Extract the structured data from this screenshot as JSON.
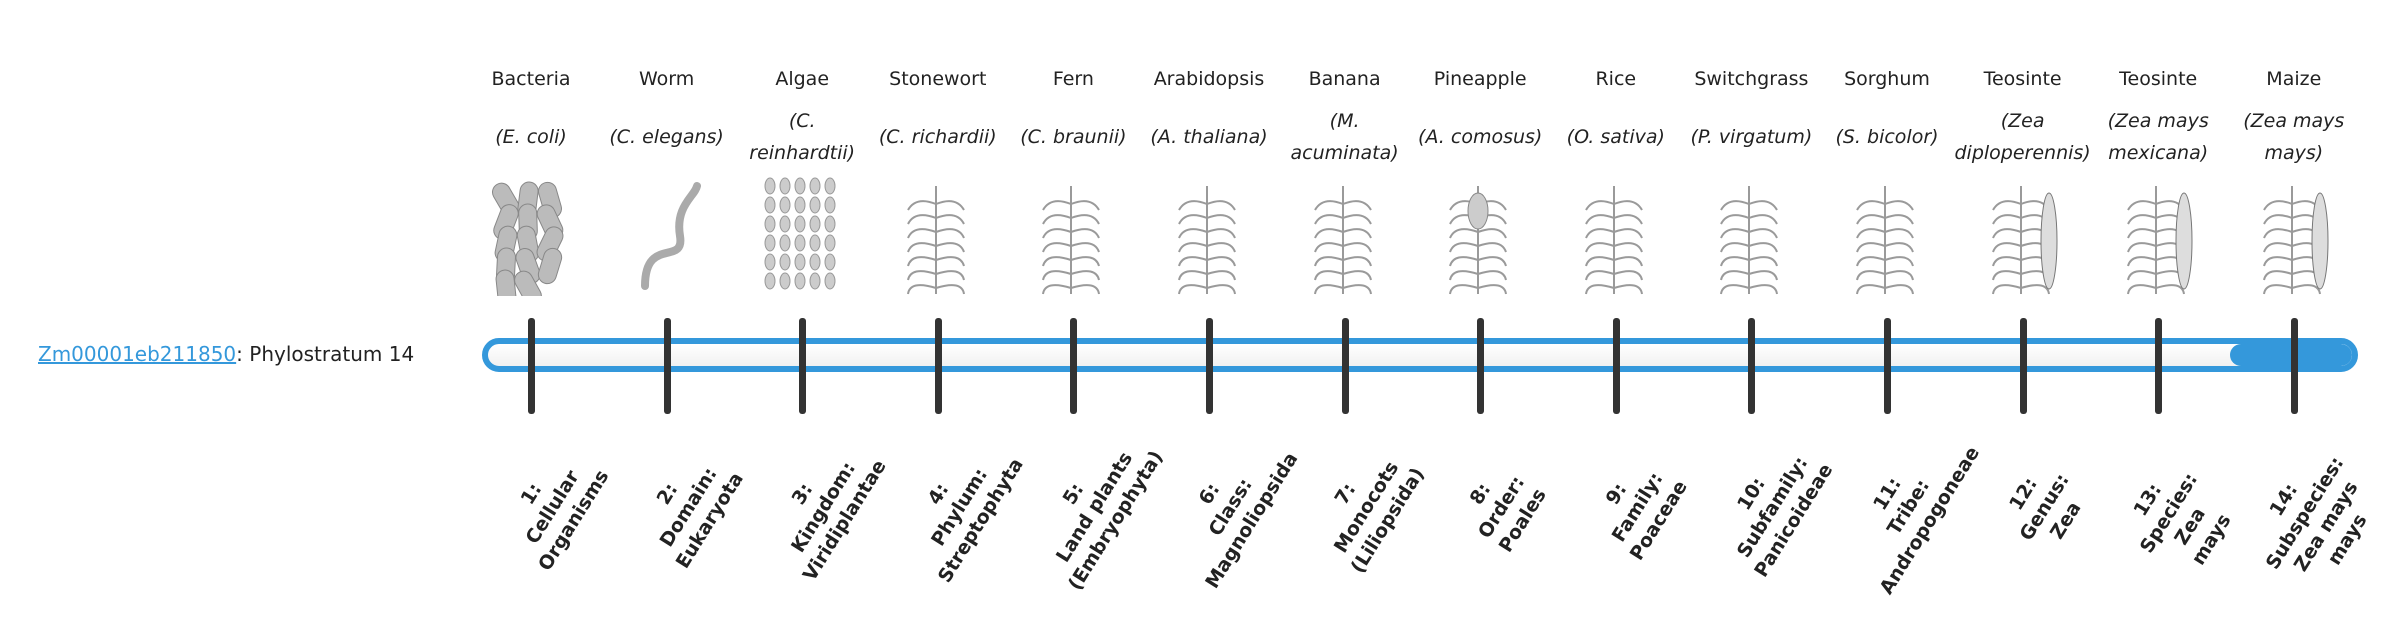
{
  "gene": {
    "id": "Zm00001eb211850",
    "separator": ":",
    "text": " Phylostratum 14",
    "phylostratum": 14,
    "total_strata": 14
  },
  "accent_color": "#3498db",
  "organisms": [
    {
      "common": "Bacteria",
      "latin": "(E. coli)",
      "icon": "bacteria-icon"
    },
    {
      "common": "Worm",
      "latin": "(C. elegans)",
      "icon": "worm-icon"
    },
    {
      "common": "Algae",
      "latin": "(C. reinhardtii)",
      "icon": "algae-icon"
    },
    {
      "common": "Stonewort",
      "latin": "(C. richardii)",
      "icon": "stonewort-icon"
    },
    {
      "common": "Fern",
      "latin": "(C. braunii)",
      "icon": "fern-icon"
    },
    {
      "common": "Arabidopsis",
      "latin": "(A. thaliana)",
      "icon": "arabidopsis-icon"
    },
    {
      "common": "Banana",
      "latin": "(M. acuminata)",
      "icon": "banana-icon"
    },
    {
      "common": "Pineapple",
      "latin": "(A. comosus)",
      "icon": "pineapple-icon"
    },
    {
      "common": "Rice",
      "latin": "(O. sativa)",
      "icon": "rice-icon"
    },
    {
      "common": "Switchgrass",
      "latin": "(P. virgatum)",
      "icon": "switchgrass-icon"
    },
    {
      "common": "Sorghum",
      "latin": "(S. bicolor)",
      "icon": "sorghum-icon"
    },
    {
      "common": "Teosinte",
      "latin": "(Zea diploperennis)",
      "icon": "teosinte-icon"
    },
    {
      "common": "Teosinte",
      "latin": "(Zea mays mexicana)",
      "icon": "teosinte-mexicana-icon"
    },
    {
      "common": "Maize",
      "latin": "(Zea mays mays)",
      "icon": "maize-icon"
    }
  ],
  "strata": [
    "1:\nCellular\nOrganisms",
    "2:\nDomain:\nEukaryota",
    "3:\nKingdom:\nViridiplantae",
    "4:\nPhylum:\nStreptophyta",
    "5:\nLand plants\n(Embryophyta)",
    "6:\nClass:\nMagnoliopsida",
    "7:\nMonocots\n(Liliopsida)",
    "8:\nOrder:\nPoales",
    "9:\nFamily:\nPoaceae",
    "10:\nSubfamily:\nPanicoideae",
    "11:\nTribe:\nAndropogoneae",
    "12:\nGenus:\nZea",
    "13:\nSpecies:\nZea\nmays",
    "14:\nSubspecies:\nZea mays\nmays"
  ]
}
